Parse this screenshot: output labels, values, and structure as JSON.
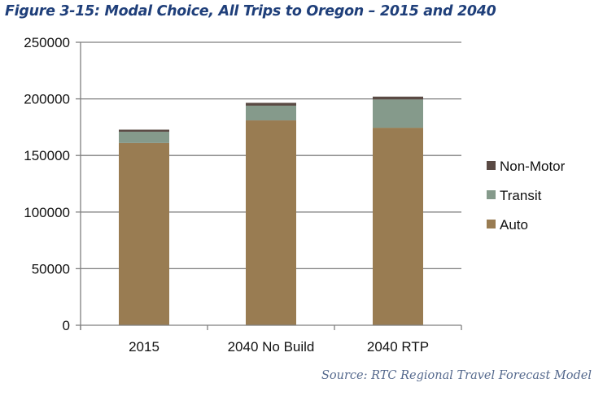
{
  "figure": {
    "title": "Figure 3-15: Modal Choice, All Trips to Oregon – 2015 and 2040",
    "source": "Source: RTC Regional Travel Forecast Model"
  },
  "chart_data": {
    "type": "bar",
    "stacked": true,
    "title": "Figure 3-15: Modal Choice, All Trips to Oregon – 2015 and 2040",
    "xlabel": "",
    "ylabel": "",
    "categories": [
      "2015",
      "2040 No Build",
      "2040 RTP"
    ],
    "series": [
      {
        "name": "Auto",
        "color": "#997c52",
        "values": [
          161000,
          181000,
          174500
        ]
      },
      {
        "name": "Transit",
        "color": "#859a8b",
        "values": [
          10000,
          13000,
          25000
        ]
      },
      {
        "name": "Non-Motor",
        "color": "#5a4a44",
        "values": [
          1800,
          2500,
          2500
        ]
      }
    ],
    "ylim": [
      0,
      250000
    ],
    "yticks": [
      0,
      50000,
      100000,
      150000,
      200000,
      250000
    ],
    "ytick_labels": [
      "0",
      "50000",
      "100000",
      "150000",
      "200000",
      "250000"
    ],
    "grid": true,
    "legend": {
      "position": "right",
      "entries": [
        "Non-Motor",
        "Transit",
        "Auto"
      ]
    },
    "colors": {
      "axis": "#7f7f7f",
      "grid": "#7f7f7f"
    }
  }
}
